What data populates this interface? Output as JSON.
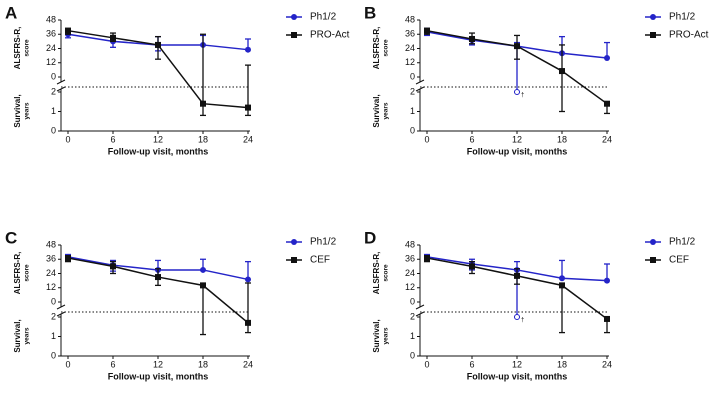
{
  "chart_data": [
    {
      "type": "line",
      "panel_label": "A",
      "x": [
        0,
        6,
        12,
        18,
        24
      ],
      "xlim": [
        0,
        24
      ],
      "xticks": [
        0,
        6,
        12,
        18,
        24
      ],
      "xlabel": "Follow-up visit, months",
      "ylim": [
        0,
        48
      ],
      "yticks": [
        0,
        12,
        24,
        36,
        48
      ],
      "ylabel": "ALSFRS-R,",
      "ylabel_unit": "score",
      "y2lim": [
        0,
        2
      ],
      "y2ticks": [
        0,
        1,
        2
      ],
      "y2label": "Survival,",
      "y2label_unit": "years",
      "series": [
        {
          "name": "Ph1/2",
          "color": "#2424c8",
          "marker": "circle",
          "values": [
            36,
            30,
            27,
            27,
            23
          ],
          "value_axis": [
            "y",
            "y",
            "y",
            "y",
            "y"
          ],
          "err_low": [
            33,
            25,
            22,
            null,
            null
          ],
          "err_low_axis": [
            "y",
            "y",
            "y",
            "y",
            "y"
          ],
          "err_high": [
            39,
            34,
            34,
            35,
            32
          ],
          "err_high_axis": [
            "y",
            "y",
            "y",
            "y",
            "y"
          ]
        },
        {
          "name": "PRO-Act",
          "color": "#111111",
          "marker": "square",
          "values": [
            39,
            33,
            27,
            1.4,
            1.2
          ],
          "value_axis": [
            "y",
            "y",
            "y",
            "y2",
            "y2"
          ],
          "err_low": [
            36,
            30,
            15,
            0.8,
            0.8
          ],
          "err_low_axis": [
            "y",
            "y",
            "y",
            "y2",
            "y2"
          ],
          "err_high": [
            41,
            37,
            34,
            36,
            10
          ],
          "err_high_axis": [
            "y",
            "y",
            "y",
            "y",
            "y"
          ]
        }
      ]
    },
    {
      "type": "line",
      "panel_label": "B",
      "x": [
        0,
        6,
        12,
        18,
        24
      ],
      "xlim": [
        0,
        24
      ],
      "xticks": [
        0,
        6,
        12,
        18,
        24
      ],
      "xlabel": "Follow-up visit, months",
      "ylim": [
        0,
        48
      ],
      "yticks": [
        0,
        12,
        24,
        36,
        48
      ],
      "ylabel": "ALSFRS-R,",
      "ylabel_unit": "score",
      "y2lim": [
        0,
        2
      ],
      "y2ticks": [
        0,
        1,
        2
      ],
      "y2label": "Survival,",
      "y2label_unit": "years",
      "censored": {
        "x": 12,
        "value": 2,
        "label": "†"
      },
      "series": [
        {
          "name": "Ph1/2",
          "color": "#2424c8",
          "marker": "circle",
          "values": [
            38,
            31,
            26,
            20,
            16
          ],
          "value_axis": [
            "y",
            "y",
            "y",
            "y",
            "y"
          ],
          "err_low": [
            35,
            27,
            2,
            null,
            null
          ],
          "err_low_axis": [
            "y",
            "y",
            "y2",
            "y",
            "y"
          ],
          "err_high": [
            41,
            34,
            29,
            34,
            29
          ],
          "err_high_axis": [
            "y",
            "y",
            "y",
            "y",
            "y"
          ]
        },
        {
          "name": "PRO-Act",
          "color": "#111111",
          "marker": "square",
          "values": [
            39,
            32,
            26,
            5,
            1.4
          ],
          "value_axis": [
            "y",
            "y",
            "y",
            "y",
            "y2"
          ],
          "err_low": [
            36,
            28,
            15,
            1.0,
            0.9
          ],
          "err_low_axis": [
            "y",
            "y",
            "y",
            "y2",
            "y2"
          ],
          "err_high": [
            41,
            37,
            35,
            27,
            null
          ],
          "err_high_axis": [
            "y",
            "y",
            "y",
            "y",
            "y"
          ]
        }
      ]
    },
    {
      "type": "line",
      "panel_label": "C",
      "x": [
        0,
        6,
        12,
        18,
        24
      ],
      "xlim": [
        0,
        24
      ],
      "xticks": [
        0,
        6,
        12,
        18,
        24
      ],
      "xlabel": "Follow-up visit, months",
      "ylim": [
        0,
        48
      ],
      "yticks": [
        0,
        12,
        24,
        36,
        48
      ],
      "ylabel": "ALSFRS-R,",
      "ylabel_unit": "score",
      "y2lim": [
        0,
        2
      ],
      "y2ticks": [
        0,
        1,
        2
      ],
      "y2label": "Survival,",
      "y2label_unit": "years",
      "series": [
        {
          "name": "Ph1/2",
          "color": "#2424c8",
          "marker": "circle",
          "values": [
            38,
            31,
            27,
            27,
            19
          ],
          "value_axis": [
            "y",
            "y",
            "y",
            "y",
            "y"
          ],
          "err_low": [
            35,
            26,
            22,
            null,
            null
          ],
          "err_low_axis": [
            "y",
            "y",
            "y",
            "y",
            "y"
          ],
          "err_high": [
            40,
            35,
            35,
            36,
            34
          ],
          "err_high_axis": [
            "y",
            "y",
            "y",
            "y",
            "y"
          ]
        },
        {
          "name": "CEF",
          "color": "#111111",
          "marker": "square",
          "values": [
            37,
            30,
            21,
            14,
            1.7
          ],
          "value_axis": [
            "y",
            "y",
            "y",
            "y",
            "y2"
          ],
          "err_low": [
            34,
            24,
            14,
            1.1,
            1.2
          ],
          "err_low_axis": [
            "y",
            "y",
            "y",
            "y2",
            "y2"
          ],
          "err_high": [
            39,
            34,
            28,
            null,
            16
          ],
          "err_high_axis": [
            "y",
            "y",
            "y",
            "y",
            "y"
          ]
        }
      ]
    },
    {
      "type": "line",
      "panel_label": "D",
      "x": [
        0,
        6,
        12,
        18,
        24
      ],
      "xlim": [
        0,
        24
      ],
      "xticks": [
        0,
        6,
        12,
        18,
        24
      ],
      "xlabel": "Follow-up visit, months",
      "ylim": [
        0,
        48
      ],
      "yticks": [
        0,
        12,
        24,
        36,
        48
      ],
      "ylabel": "ALSFRS-R,",
      "ylabel_unit": "score",
      "y2lim": [
        0,
        2
      ],
      "y2ticks": [
        0,
        1,
        2
      ],
      "y2label": "Survival,",
      "y2label_unit": "years",
      "censored": {
        "x": 12,
        "value": 2,
        "label": "†"
      },
      "series": [
        {
          "name": "Ph1/2",
          "color": "#2424c8",
          "marker": "circle",
          "values": [
            38,
            32,
            27,
            20,
            18
          ],
          "value_axis": [
            "y",
            "y",
            "y",
            "y",
            "y"
          ],
          "err_low": [
            35,
            27,
            2,
            null,
            null
          ],
          "err_low_axis": [
            "y",
            "y",
            "y2",
            "y",
            "y"
          ],
          "err_high": [
            40,
            36,
            34,
            35,
            32
          ],
          "err_high_axis": [
            "y",
            "y",
            "y",
            "y",
            "y"
          ]
        },
        {
          "name": "CEF",
          "color": "#111111",
          "marker": "square",
          "values": [
            37,
            30,
            22,
            14,
            1.9
          ],
          "value_axis": [
            "y",
            "y",
            "y",
            "y",
            "y2"
          ],
          "err_low": [
            34,
            24,
            15,
            1.2,
            1.2
          ],
          "err_low_axis": [
            "y",
            "y",
            "y",
            "y2",
            "y2"
          ],
          "err_high": [
            39,
            34,
            28,
            null,
            null
          ],
          "err_high_axis": [
            "y",
            "y",
            "y",
            "y",
            "y"
          ]
        }
      ]
    }
  ]
}
